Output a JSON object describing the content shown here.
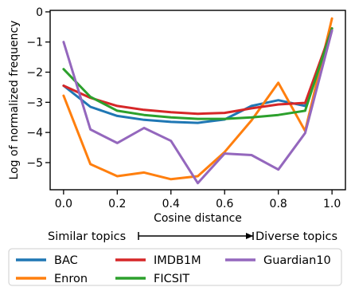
{
  "chart_data": {
    "type": "line",
    "xlabel": "Cosine distance",
    "ylabel": "Log of normalized frequency",
    "xlim": [
      -0.05,
      1.05
    ],
    "ylim": [
      -5.9,
      0.05
    ],
    "xticks": [
      0.0,
      0.2,
      0.4,
      0.6,
      0.8,
      1.0
    ],
    "xtick_labels": [
      "0.0",
      "0.2",
      "0.4",
      "0.6",
      "0.8",
      "1.0"
    ],
    "yticks": [
      0,
      -1,
      -2,
      -3,
      -4,
      -5
    ],
    "ytick_labels": [
      "0",
      "−1",
      "−2",
      "−3",
      "−4",
      "−5"
    ],
    "grid": false,
    "legend_position": "bottom",
    "annotation": {
      "left": "Similar topics",
      "right": "Diverse topics"
    },
    "x": [
      0.0,
      0.1,
      0.2,
      0.3,
      0.4,
      0.5,
      0.6,
      0.7,
      0.8,
      0.9,
      1.0
    ],
    "series": [
      {
        "name": "BAC",
        "color": "#1f77b4",
        "values": [
          -2.45,
          -3.15,
          -3.45,
          -3.58,
          -3.65,
          -3.68,
          -3.57,
          -3.12,
          -2.93,
          -3.12,
          -0.55
        ]
      },
      {
        "name": "Enron",
        "color": "#ff7f0e",
        "values": [
          -2.78,
          -5.05,
          -5.45,
          -5.33,
          -5.55,
          -5.45,
          -4.65,
          -3.6,
          -2.35,
          -3.95,
          -0.22
        ]
      },
      {
        "name": "IMDB1M",
        "color": "#d62728",
        "values": [
          -2.45,
          -2.85,
          -3.12,
          -3.25,
          -3.33,
          -3.38,
          -3.35,
          -3.2,
          -3.07,
          -3.02,
          -0.55
        ]
      },
      {
        "name": "FICSIT",
        "color": "#2ca02c",
        "values": [
          -1.9,
          -2.82,
          -3.28,
          -3.42,
          -3.5,
          -3.55,
          -3.55,
          -3.5,
          -3.42,
          -3.28,
          -0.55
        ]
      },
      {
        "name": "Guardian10",
        "color": "#9467bd",
        "values": [
          -1.0,
          -3.9,
          -4.35,
          -3.85,
          -4.28,
          -5.68,
          -4.7,
          -4.75,
          -5.23,
          -4.02,
          -0.62
        ]
      }
    ]
  }
}
